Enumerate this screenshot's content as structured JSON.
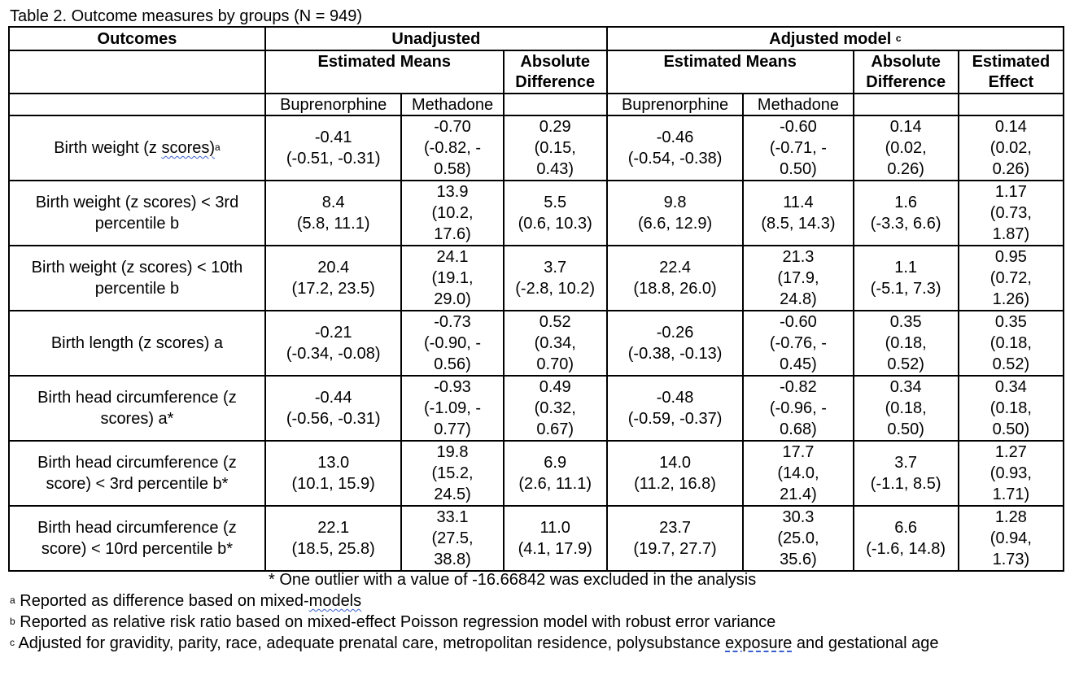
{
  "caption": "Table 2. Outcome measures by groups (N = 949)",
  "headers": {
    "outcomes": "Outcomes",
    "unadjusted": "Unadjusted",
    "adjusted_model": "Adjusted model",
    "adjusted_model_sup": "c",
    "estimated_means_unadj": "Estimated Means",
    "absolute_difference_unadj": "Absolute\nDifference",
    "estimated_means_adj": "Estimated Means",
    "absolute_difference_adj": "Absolute\nDifference",
    "estimated_effect": "Estimated\nEffect",
    "buprenorphine_unadj": "Buprenorphine",
    "methadone_unadj": "Methadone",
    "buprenorphine_adj": "Buprenorphine",
    "methadone_adj": "Methadone"
  },
  "rows": [
    {
      "outcome_text": "Birth weight (z ",
      "outcome_underlined": "scores)",
      "outcome_sup": "a",
      "bup_unadj": "-0.41\n(-0.51, -0.31)",
      "meth_unadj": "-0.70\n(-0.82, -\n0.58)",
      "diff_unadj": "0.29\n(0.15,\n0.43)",
      "bup_adj": "-0.46\n(-0.54, -0.38)",
      "meth_adj": "-0.60\n(-0.71, -\n0.50)",
      "diff_adj": "0.14\n(0.02,\n0.26)",
      "effect": "0.14\n(0.02,\n0.26)"
    },
    {
      "outcome_text": "Birth weight (z scores) < 3rd\npercentile b",
      "bup_unadj": "8.4\n(5.8, 11.1)",
      "meth_unadj": "13.9\n(10.2,\n17.6)",
      "diff_unadj": "5.5\n(0.6, 10.3)",
      "bup_adj": "9.8\n(6.6, 12.9)",
      "meth_adj": "11.4\n(8.5, 14.3)",
      "diff_adj": "1.6\n(-3.3, 6.6)",
      "effect": "1.17\n(0.73,\n1.87)"
    },
    {
      "outcome_text": "Birth weight (z scores) < 10th\npercentile b",
      "bup_unadj": "20.4\n(17.2, 23.5)",
      "meth_unadj": "24.1\n(19.1,\n29.0)",
      "diff_unadj": "3.7\n(-2.8, 10.2)",
      "bup_adj": "22.4\n(18.8, 26.0)",
      "meth_adj": "21.3\n(17.9,\n24.8)",
      "diff_adj": "1.1\n(-5.1, 7.3)",
      "effect": "0.95\n(0.72,\n1.26)"
    },
    {
      "outcome_text": "Birth length (z scores) a",
      "bup_unadj": "-0.21\n(-0.34, -0.08)",
      "meth_unadj": "-0.73\n(-0.90, -\n0.56)",
      "diff_unadj": "0.52\n(0.34,\n0.70)",
      "bup_adj": "-0.26\n(-0.38, -0.13)",
      "meth_adj": "-0.60\n(-0.76, -\n0.45)",
      "diff_adj": "0.35\n(0.18,\n0.52)",
      "effect": "0.35\n(0.18,\n0.52)"
    },
    {
      "outcome_text": "Birth head circumference (z\nscores) a*",
      "bup_unadj": "-0.44\n(-0.56, -0.31)",
      "meth_unadj": "-0.93\n(-1.09, -\n0.77)",
      "diff_unadj": "0.49\n(0.32,\n0.67)",
      "bup_adj": "-0.48\n(-0.59, -0.37)",
      "meth_adj": "-0.82\n(-0.96, -\n0.68)",
      "diff_adj": "0.34\n(0.18,\n0.50)",
      "effect": "0.34\n(0.18,\n0.50)"
    },
    {
      "outcome_text": "Birth head circumference (z\nscore) < 3rd percentile b*",
      "bup_unadj": "13.0\n(10.1, 15.9)",
      "meth_unadj": "19.8\n(15.2,\n24.5)",
      "diff_unadj": "6.9\n(2.6, 11.1)",
      "bup_adj": "14.0\n(11.2, 16.8)",
      "meth_adj": "17.7\n(14.0,\n21.4)",
      "diff_adj": "3.7\n(-1.1, 8.5)",
      "effect": "1.27\n(0.93,\n1.71)"
    },
    {
      "outcome_text": "Birth head circumference (z\nscore) < 10rd percentile b*",
      "bup_unadj": "22.1\n(18.5, 25.8)",
      "meth_unadj": "33.1\n(27.5,\n38.8)",
      "diff_unadj": "11.0\n(4.1, 17.9)",
      "bup_adj": "23.7\n(19.7, 27.7)",
      "meth_adj": "30.3\n(25.0,\n35.6)",
      "diff_adj": "6.6\n(-1.6, 14.8)",
      "effect": "1.28\n(0.94,\n1.73)"
    }
  ],
  "notes": {
    "outlier": "* One outlier with a value of -16.66842 was excluded in the analysis",
    "a_sup": "a",
    "a_text": " Reported as difference based on mixed-",
    "a_underlined": "models",
    "b_sup": "b",
    "b_text": " Reported as relative risk ratio based on mixed-effect Poisson regression model with robust error variance",
    "c_sup": "c",
    "c_text_before": " Adjusted for gravidity, parity, race, adequate prenatal care, metropolitan residence, polysubstance ",
    "c_underlined": "exposure",
    "c_text_after": " and gestational age"
  }
}
